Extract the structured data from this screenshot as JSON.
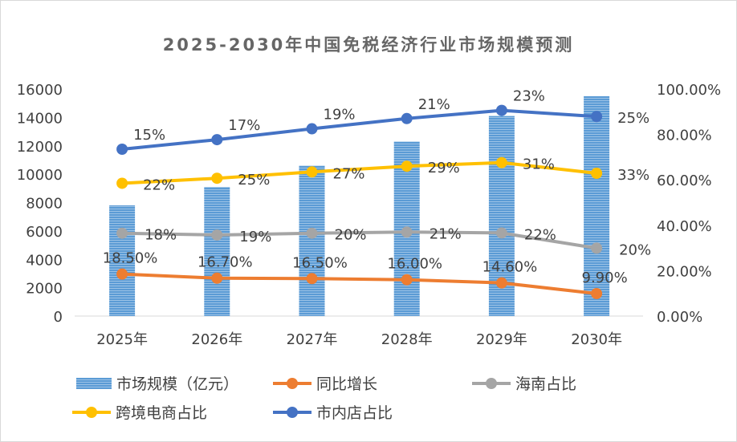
{
  "chart_data": {
    "type": "bar+line",
    "title": "2025-2030年中国免税经济行业市场规模预测",
    "categories": [
      "2025年",
      "2026年",
      "2027年",
      "2028年",
      "2029年",
      "2030年"
    ],
    "left_axis": {
      "range": [
        0,
        16000
      ],
      "ticks": [
        "0",
        "2000",
        "4000",
        "6000",
        "8000",
        "10000",
        "12000",
        "14000",
        "16000"
      ]
    },
    "right_axis": {
      "range": [
        0,
        100
      ],
      "ticks": [
        "0.00%",
        "20.00%",
        "40.00%",
        "60.00%",
        "80.00%",
        "100.00%"
      ]
    },
    "stacked_lines": true,
    "series": [
      {
        "name": "市场规模（亿元）",
        "type": "bar",
        "axis": "left",
        "color": "#5b9bd5",
        "values": [
          7800,
          9100,
          10600,
          12300,
          14100,
          15500
        ]
      },
      {
        "name": "同比增长",
        "type": "line",
        "axis": "right",
        "color": "#ed7d31",
        "values": [
          18.5,
          16.7,
          16.5,
          16.0,
          14.6,
          9.9
        ],
        "labels": [
          "18.50%",
          "16.70%",
          "16.50%",
          "16.00%",
          "14.60%",
          "9.90%"
        ]
      },
      {
        "name": "海南占比",
        "type": "line",
        "axis": "right",
        "color": "#a5a5a5",
        "values": [
          18,
          19,
          20,
          21,
          22,
          20
        ],
        "labels": [
          "18%",
          "19%",
          "20%",
          "21%",
          "22%",
          "20%"
        ]
      },
      {
        "name": "跨境电商占比",
        "type": "line",
        "axis": "right",
        "color": "#ffc000",
        "values": [
          22,
          25,
          27,
          29,
          31,
          33
        ],
        "labels": [
          "22%",
          "25%",
          "27%",
          "29%",
          "31%",
          "33%"
        ]
      },
      {
        "name": "市内店占比",
        "type": "line",
        "axis": "right",
        "color": "#4472c4",
        "values": [
          15,
          17,
          19,
          21,
          23,
          25
        ],
        "labels": [
          "15%",
          "17%",
          "19%",
          "21%",
          "23%",
          "25%"
        ]
      }
    ],
    "legend_position": "bottom"
  }
}
